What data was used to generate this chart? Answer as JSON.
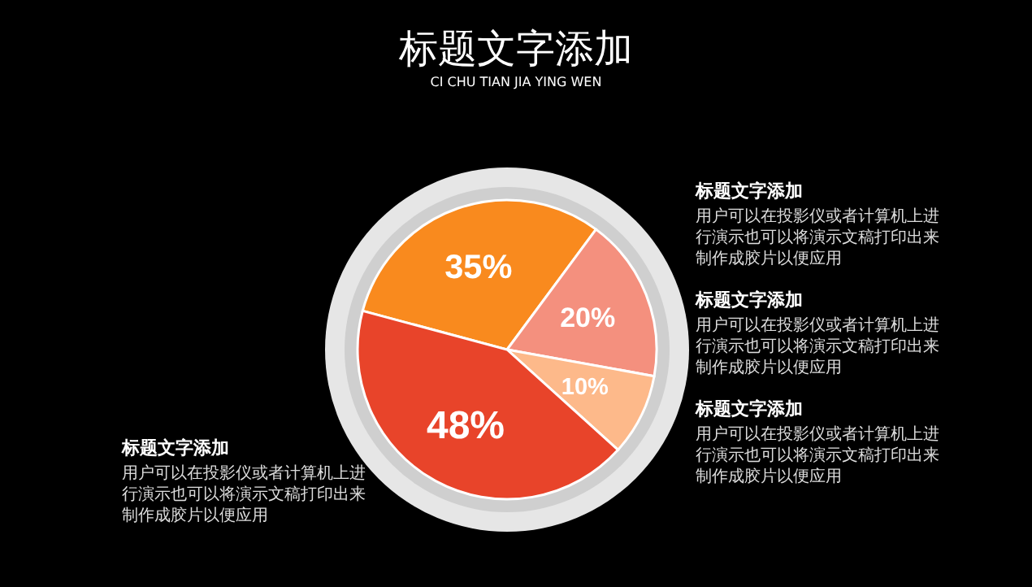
{
  "chart_data": {
    "type": "pie",
    "title": "标题文字添加",
    "subtitle": "CI CHU TIAN JIA YING WEN",
    "categories": [
      null,
      null,
      null,
      null
    ],
    "values": [
      35,
      20,
      10,
      48
    ],
    "colors": [
      "#f98a1e",
      "#f4907e",
      "#fdb98a",
      "#e8442a"
    ],
    "value_labels": [
      "35%",
      "20%",
      "10%",
      "48%"
    ],
    "annotations": [
      "标题文字添加",
      "用户可以在投影仪或者计算机上进行演示也可以将演示文稿打印出来制作成胶片以便应用",
      "标题文字添加",
      "用户可以在投影仪或者计算机上进行演示也可以将演示文稿打印出来制作成胶片以便应用",
      "标题文字添加",
      "用户可以在投影仪或者计算机上进行演示也可以将演示文稿打印出来制作成胶片以便应用",
      "标题文字添加",
      "用户可以在投影仪或者计算机上进行演示也可以将演示文稿打印出来制作成胶片以便应用"
    ]
  }
}
